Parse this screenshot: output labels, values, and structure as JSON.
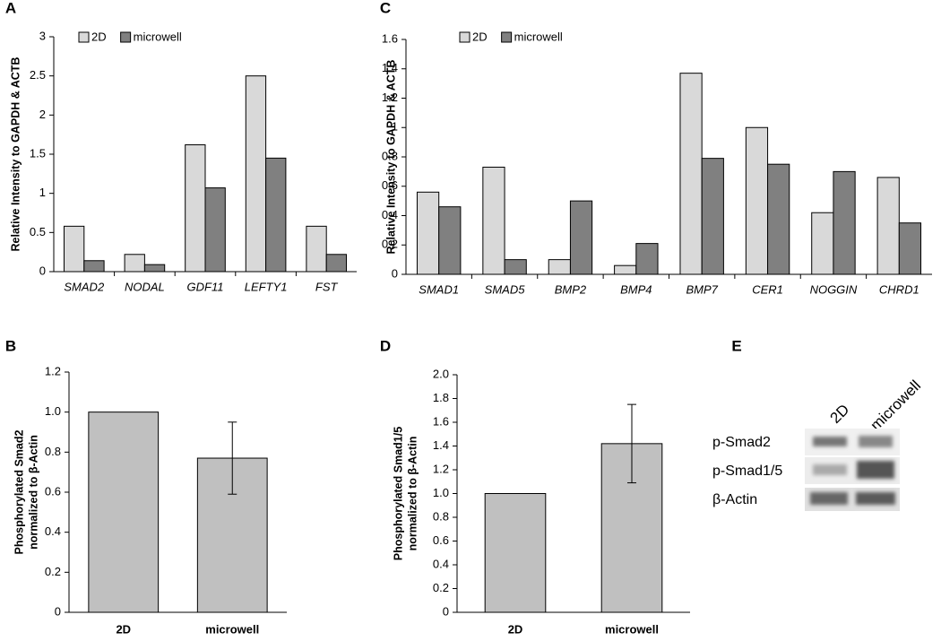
{
  "chart_data": [
    {
      "type": "bar",
      "panel": "A",
      "y_label": "Relative Intensity to GAPDH & ACTB",
      "categories": [
        "SMAD2",
        "NODAL",
        "GDF11",
        "LEFTY1",
        "FST"
      ],
      "series": [
        {
          "name": "2D",
          "color": "#d9d9d9",
          "values": [
            0.58,
            0.22,
            1.62,
            2.5,
            0.58
          ]
        },
        {
          "name": "microwell",
          "color": "#808080",
          "values": [
            0.14,
            0.09,
            1.07,
            1.45,
            0.22
          ]
        }
      ],
      "ylim": [
        0,
        3
      ],
      "yticks": [
        0,
        0.5,
        1,
        1.5,
        2,
        2.5,
        3
      ]
    },
    {
      "type": "bar",
      "panel": "B",
      "y_label": [
        "Phosphorylated Smad2",
        "normalized to β-Actin"
      ],
      "categories": [
        "2D",
        "microwell"
      ],
      "values": [
        1.0,
        0.77
      ],
      "errors": [
        null,
        0.18
      ],
      "color": "#c0c0c0",
      "ylim": [
        0,
        1.2
      ],
      "yticks": [
        0,
        0.2,
        0.4,
        0.6,
        0.8,
        {
          "value": 1,
          "label": "1.0"
        },
        1.2
      ]
    },
    {
      "type": "bar",
      "panel": "C",
      "y_label": "Relative Intensity to GAPDH & ACTB",
      "categories": [
        "SMAD1",
        "SMAD5",
        "BMP2",
        "BMP4",
        "BMP7",
        "CER1",
        "NOGGIN",
        "CHRD1"
      ],
      "series": [
        {
          "name": "2D",
          "color": "#d9d9d9",
          "values": [
            0.56,
            0.73,
            0.1,
            0.06,
            1.37,
            1.0,
            0.42,
            0.66
          ]
        },
        {
          "name": "microwell",
          "color": "#808080",
          "values": [
            0.46,
            0.1,
            0.5,
            0.21,
            0.79,
            0.75,
            0.7,
            0.35
          ]
        }
      ],
      "ylim": [
        0,
        1.6
      ],
      "yticks": [
        0,
        0.2,
        0.4,
        0.6,
        0.8,
        1,
        1.2,
        1.4,
        1.6
      ]
    },
    {
      "type": "bar",
      "panel": "D",
      "y_label": [
        "Phosphorylated Smad1/5",
        "normalized to β-Actin"
      ],
      "categories": [
        "2D",
        "microwell"
      ],
      "values": [
        1.0,
        1.42
      ],
      "errors": [
        null,
        0.33
      ],
      "color": "#c0c0c0",
      "ylim": [
        0,
        2
      ],
      "yticks": [
        0,
        0.2,
        0.4,
        0.6,
        0.8,
        {
          "value": 1,
          "label": "1.0"
        },
        1.2,
        1.4,
        1.6,
        1.8,
        {
          "value": 2,
          "label": "2.0"
        }
      ]
    }
  ],
  "blot": {
    "panel": "E",
    "lanes": [
      "2D",
      "microwell"
    ],
    "rows": [
      "p-Smad2",
      "p-Smad1/5",
      "β-Actin"
    ]
  }
}
